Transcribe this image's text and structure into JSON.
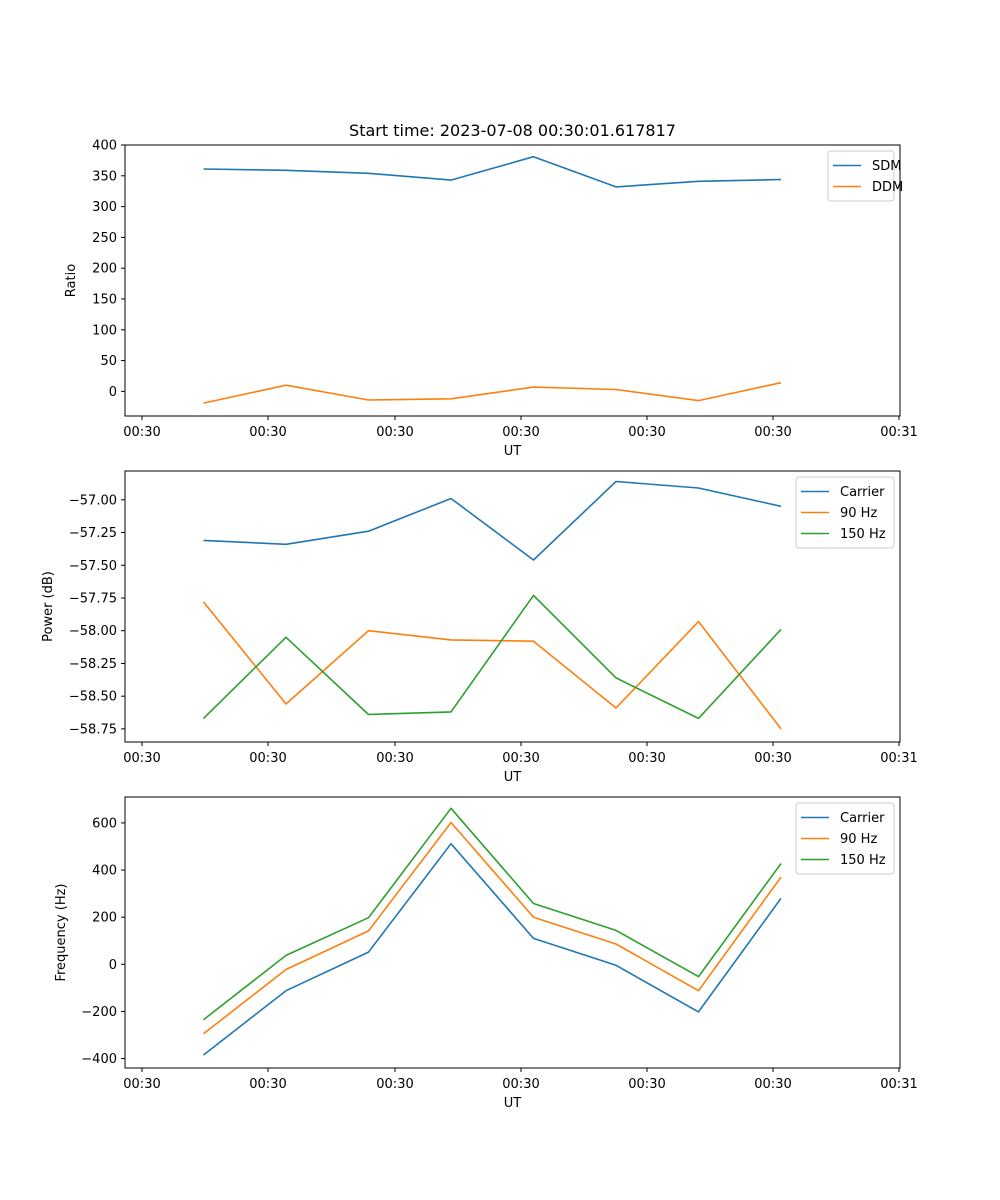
{
  "chart_data": [
    {
      "type": "line",
      "title": "Start time: 2023-07-08 00:30:01.617817",
      "xlabel": "UT",
      "ylabel": "Ratio",
      "x_tick_labels": [
        "00:30",
        "00:30",
        "00:30",
        "00:30",
        "00:30",
        "00:30",
        "00:30",
        "00:31"
      ],
      "ylim": [
        -40,
        400
      ],
      "yticks": [
        0,
        50,
        100,
        150,
        200,
        250,
        300,
        350,
        400
      ],
      "ytick_labels": [
        "0",
        "50",
        "100",
        "150",
        "200",
        "250",
        "300",
        "350",
        "400"
      ],
      "legend_position": "top-right",
      "series": [
        {
          "name": "SDM",
          "color": "#1f77b4",
          "values": [
            361,
            359,
            354,
            343,
            381,
            332,
            341,
            344
          ]
        },
        {
          "name": "DDM",
          "color": "#ff7f0e",
          "values": [
            -19,
            10,
            -14,
            -12,
            7,
            3,
            -15,
            14
          ]
        }
      ]
    },
    {
      "type": "line",
      "title": "",
      "xlabel": "UT",
      "ylabel": "Power (dB)",
      "x_tick_labels": [
        "00:30",
        "00:30",
        "00:30",
        "00:30",
        "00:30",
        "00:30",
        "00:30",
        "00:31"
      ],
      "ylim": [
        -58.85,
        -56.78
      ],
      "yticks": [
        -58.75,
        -58.5,
        -58.25,
        -58.0,
        -57.75,
        -57.5,
        -57.25,
        -57.0
      ],
      "ytick_labels": [
        "−58.75",
        "−58.50",
        "−58.25",
        "−58.00",
        "−57.75",
        "−57.50",
        "−57.25",
        "−57.00"
      ],
      "legend_position": "top-right",
      "series": [
        {
          "name": "Carrier",
          "color": "#1f77b4",
          "values": [
            -57.31,
            -57.34,
            -57.24,
            -56.99,
            -57.46,
            -56.86,
            -56.91,
            -57.05
          ]
        },
        {
          "name": "90 Hz",
          "color": "#ff7f0e",
          "values": [
            -57.78,
            -58.56,
            -58.0,
            -58.07,
            -58.08,
            -58.59,
            -57.93,
            -58.75
          ]
        },
        {
          "name": "150 Hz",
          "color": "#2ca02c",
          "values": [
            -58.67,
            -58.05,
            -58.64,
            -58.62,
            -57.73,
            -58.36,
            -58.67,
            -57.99
          ]
        }
      ]
    },
    {
      "type": "line",
      "title": "",
      "xlabel": "UT",
      "ylabel": "Frequency (Hz)",
      "x_tick_labels": [
        "00:30",
        "00:30",
        "00:30",
        "00:30",
        "00:30",
        "00:30",
        "00:30",
        "00:31"
      ],
      "ylim": [
        -440,
        710
      ],
      "yticks": [
        -400,
        -200,
        0,
        200,
        400,
        600
      ],
      "ytick_labels": [
        "−400",
        "−200",
        "0",
        "200",
        "400",
        "600"
      ],
      "legend_position": "top-right",
      "series": [
        {
          "name": "Carrier",
          "color": "#1f77b4",
          "values": [
            -385,
            -112,
            52,
            512,
            110,
            -4,
            -202,
            280
          ]
        },
        {
          "name": "90 Hz",
          "color": "#ff7f0e",
          "values": [
            -295,
            -22,
            142,
            602,
            200,
            86,
            -112,
            370
          ]
        },
        {
          "name": "150 Hz",
          "color": "#2ca02c",
          "values": [
            -235,
            38,
            198,
            662,
            258,
            144,
            -52,
            428
          ]
        }
      ]
    }
  ]
}
